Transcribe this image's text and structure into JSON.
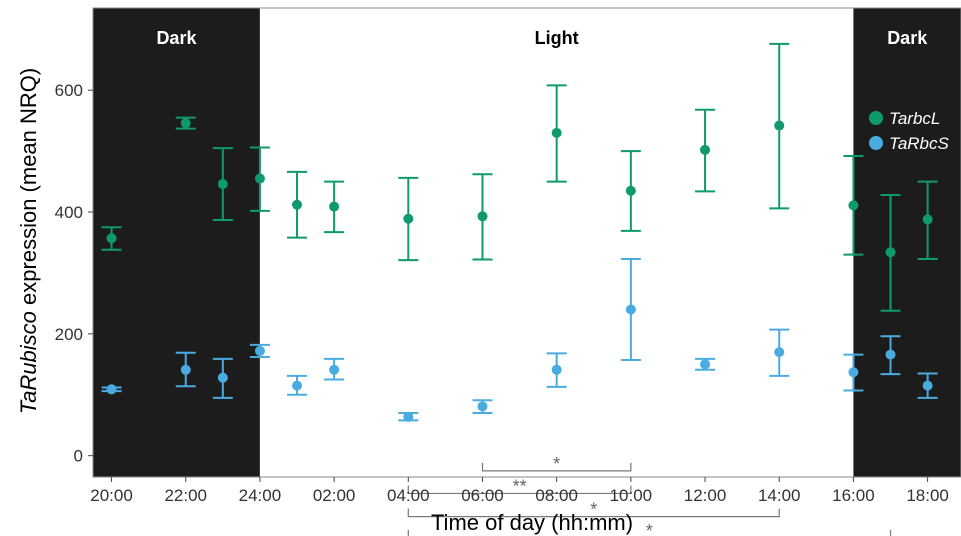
{
  "chart_data": {
    "type": "scatter",
    "xlabel": "Time of day (hh:mm)",
    "ylabel_italic": "TaRubisco",
    "ylabel_rest": " expression (mean NRQ)",
    "x_tick_labels": [
      "20:00",
      "22:00",
      "24:00",
      "02:00",
      "04:00",
      "06:00",
      "08:00",
      "10:00",
      "12:00",
      "14:00",
      "16:00",
      "18:00"
    ],
    "x_tick_hours": [
      20,
      22,
      24,
      26,
      28,
      30,
      32,
      34,
      36,
      38,
      40,
      42
    ],
    "xlim": [
      19.5,
      42.9
    ],
    "ylim": [
      -35,
      735
    ],
    "y_ticks": [
      0,
      200,
      400,
      600
    ],
    "grid": false,
    "legend_position": "right",
    "bands": [
      {
        "label": "Dark",
        "start": 19.5,
        "end": 24,
        "color": "#1c1c1c",
        "text_color": "#ffffff"
      },
      {
        "label": "Light",
        "start": 24,
        "end": 40,
        "color": "#ffffff",
        "text_color": "#000000"
      },
      {
        "label": "Dark",
        "start": 40,
        "end": 42.9,
        "color": "#1c1c1c",
        "text_color": "#ffffff"
      }
    ],
    "series": [
      {
        "name": "TarbcL",
        "color": "#0f9a6e",
        "x": [
          20,
          22,
          23,
          24,
          25,
          26,
          28,
          30,
          32,
          34,
          36,
          38,
          40,
          41,
          42
        ],
        "y": [
          357,
          546,
          446,
          455,
          412,
          409,
          389,
          393,
          530,
          435,
          502,
          542,
          411,
          334,
          388
        ],
        "err_low": [
          338,
          537,
          387,
          402,
          358,
          367,
          321,
          322,
          450,
          369,
          434,
          406,
          330,
          238,
          323
        ],
        "err_high": [
          375,
          555,
          505,
          506,
          466,
          450,
          456,
          462,
          608,
          500,
          568,
          676,
          492,
          428,
          450
        ]
      },
      {
        "name": "TaRbcS",
        "color": "#4aabe0",
        "x": [
          20,
          22,
          23,
          24,
          25,
          26,
          28,
          30,
          32,
          34,
          36,
          38,
          40,
          41,
          42
        ],
        "y": [
          109,
          141,
          128,
          172,
          115,
          141,
          64,
          81,
          141,
          240,
          150,
          170,
          137,
          166,
          115
        ],
        "err_low": [
          106,
          114,
          95,
          162,
          100,
          125,
          58,
          70,
          113,
          157,
          141,
          131,
          107,
          134,
          95
        ],
        "err_high": [
          112,
          169,
          159,
          182,
          131,
          159,
          70,
          91,
          168,
          323,
          159,
          207,
          166,
          196,
          135
        ]
      }
    ],
    "significance": [
      {
        "label": "*",
        "x_start": 30,
        "x_end": 34,
        "y": -25
      },
      {
        "label": "**",
        "x_start": 28,
        "x_end": 34,
        "y": -62
      },
      {
        "label": "*",
        "x_start": 28,
        "x_end": 38,
        "y": -100
      },
      {
        "label": "*",
        "x_start": 28,
        "x_end": 41,
        "y": -135
      }
    ]
  }
}
